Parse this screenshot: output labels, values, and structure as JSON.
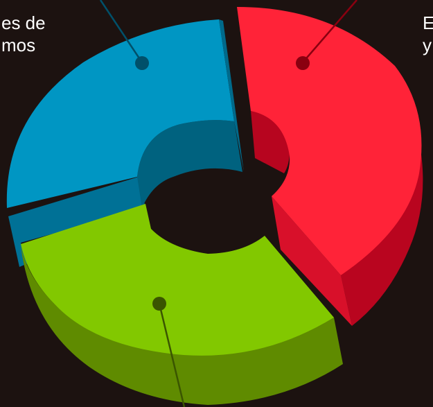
{
  "chart_data": {
    "type": "pie",
    "variant": "3d-donut-exploded",
    "slices": [
      {
        "label_lines": [
          "es de",
          "mos"
        ],
        "value": 31,
        "color": "#0096c3"
      },
      {
        "label_lines": [
          "E",
          "y"
        ],
        "value": 35,
        "color": "#ff2338"
      },
      {
        "label_lines": [],
        "value": 34,
        "color": "#82c800"
      }
    ],
    "colors": {
      "background": "#1c1210"
    }
  }
}
